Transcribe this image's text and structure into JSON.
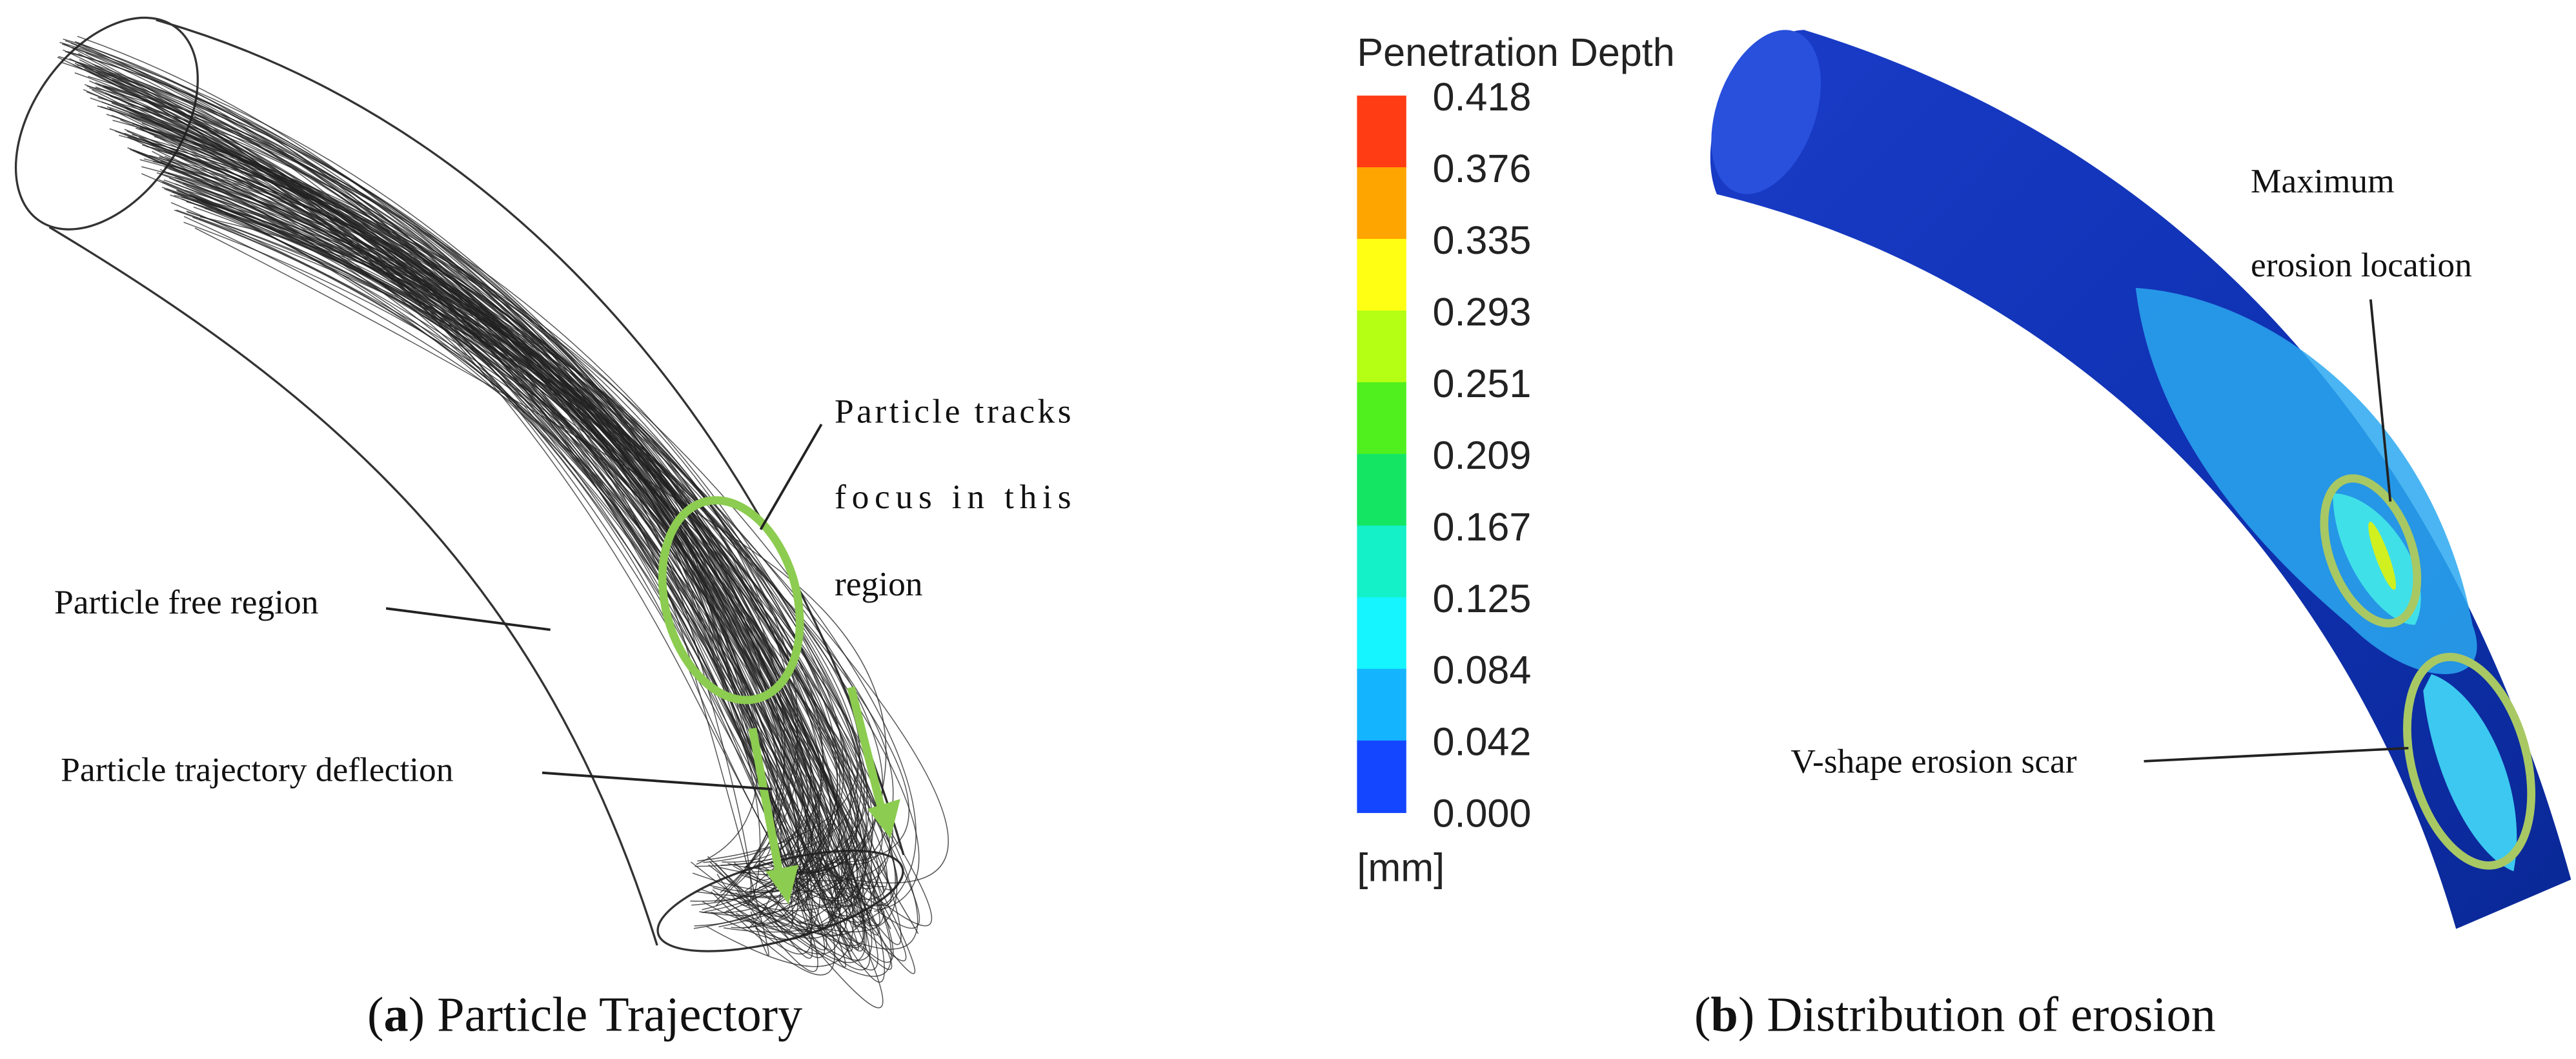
{
  "panel_a": {
    "annotations": {
      "free_region": "Particle free region",
      "deflection": "Particle trajectory deflection",
      "focus": [
        "Particle tracks",
        "focus in this",
        "region"
      ]
    },
    "caption": [
      "(",
      "a",
      ") Particle Trajectory"
    ]
  },
  "panel_b": {
    "legend": {
      "title": "Penetration Depth",
      "ticks": [
        "0.418",
        "0.376",
        "0.335",
        "0.293",
        "0.251",
        "0.209",
        "0.167",
        "0.125",
        "0.084",
        "0.042",
        "0.000"
      ],
      "colors": [
        "#ff3c14",
        "#ffa500",
        "#ffff14",
        "#b4ff14",
        "#50f01e",
        "#14e664",
        "#14f0c8",
        "#14f5ff",
        "#14b4ff",
        "#1446ff"
      ],
      "unit": "[mm]"
    },
    "annotations": {
      "maximum": [
        "Maximum",
        "erosion location"
      ],
      "scar": "V-shape erosion scar"
    },
    "caption": [
      "(",
      "b",
      ") Distribution of erosion"
    ]
  }
}
